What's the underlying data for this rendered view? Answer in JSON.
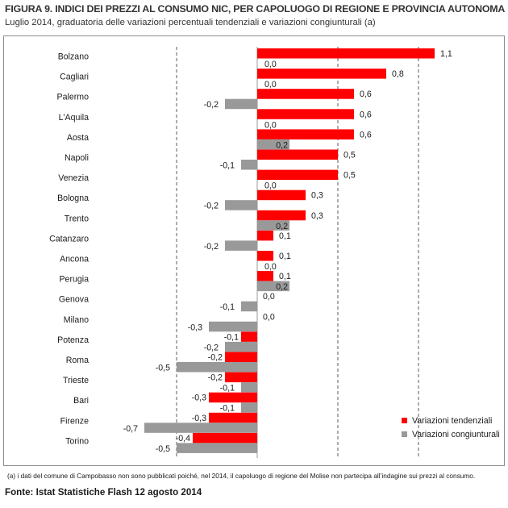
{
  "header": {
    "title": "FIGURA 9. INDICI DEI PREZZI AL CONSUMO NIC, PER CAPOLUOGO DI REGIONE E PROVINCIA AUTONOMA",
    "subtitle": "Luglio 2014, graduatoria delle variazioni percentuali tendenziali e variazioni congiunturali (a)"
  },
  "footer": {
    "note": "(a) i dati del comune di Campobasso non sono pubblicati poiché, nel 2014, il capoluogo di regione del Molise non partecipa all’indagine sui prezzi al consumo.",
    "source": "Fonte: Istat Statistiche Flash 12 agosto 2014"
  },
  "chart_data": {
    "type": "bar",
    "orientation": "horizontal",
    "categories": [
      "Bolzano",
      "Cagliari",
      "Palermo",
      "L'Aquila",
      "Aosta",
      "Napoli",
      "Venezia",
      "Bologna",
      "Trento",
      "Catanzaro",
      "Ancona",
      "Perugia",
      "Genova",
      "Milano",
      "Potenza",
      "Roma",
      "Trieste",
      "Bari",
      "Firenze",
      "Torino"
    ],
    "series": [
      {
        "name": "Variazioni tendenziali",
        "color": "#ff0000",
        "values": [
          1.1,
          0.8,
          0.6,
          0.6,
          0.6,
          0.5,
          0.5,
          0.3,
          0.3,
          0.1,
          0.1,
          0.1,
          0.0,
          0.0,
          -0.1,
          -0.2,
          -0.2,
          -0.3,
          -0.3,
          -0.4
        ]
      },
      {
        "name": "Variazioni congiunturali",
        "color": "#999999",
        "values": [
          0.0,
          0.0,
          -0.2,
          0.0,
          0.2,
          -0.1,
          0.0,
          -0.2,
          0.2,
          -0.2,
          0.0,
          0.2,
          -0.1,
          -0.3,
          -0.2,
          -0.5,
          -0.1,
          -0.1,
          -0.7,
          -0.5
        ]
      }
    ],
    "xlim": [
      -0.7,
      1.2
    ],
    "gridlines": [
      -0.5,
      0.5,
      1.0
    ],
    "grid_style": "dashed vertical",
    "legend_position": "bottom-right",
    "decimal_separator": ","
  }
}
